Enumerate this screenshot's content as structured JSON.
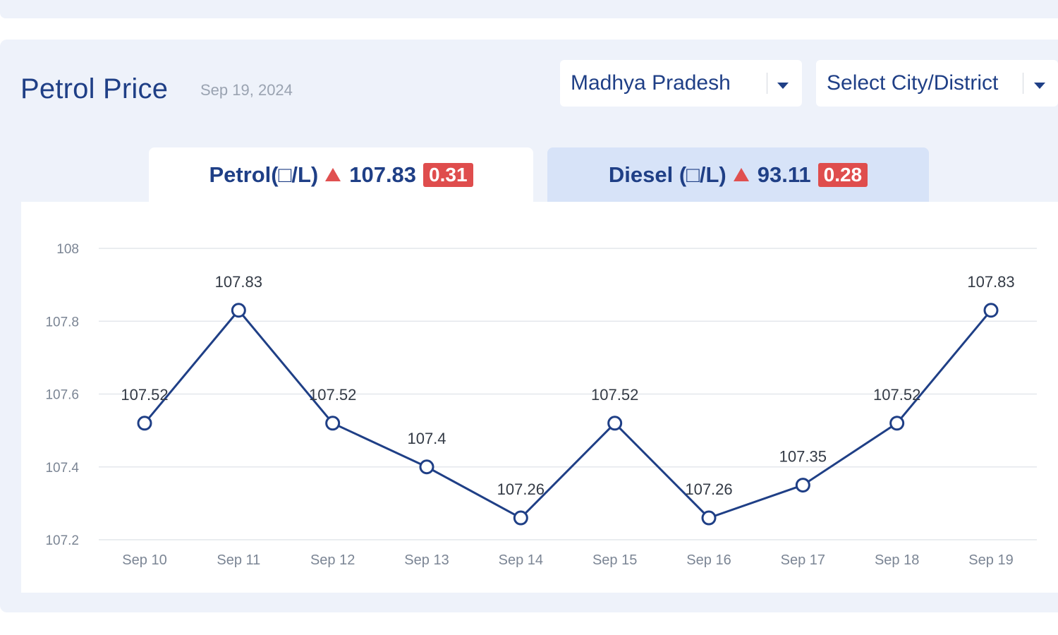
{
  "header": {
    "title": "Petrol Price",
    "date": "Sep 19, 2024",
    "state_select": {
      "value": "Madhya Pradesh"
    },
    "city_select": {
      "value": "Select City/District"
    }
  },
  "tabs": {
    "petrol": {
      "label": "Petrol(□/L)",
      "price": "107.83",
      "change": "0.31",
      "trend": "up",
      "active": true
    },
    "diesel": {
      "label": "Diesel (□/L)",
      "price": "93.11",
      "change": "0.28",
      "trend": "up",
      "active": false
    }
  },
  "colors": {
    "accent": "#1f3f86",
    "line": "#1f3f86",
    "up_badge": "#df4d4d",
    "panel_bg": "#eef2fa",
    "inactive_tab": "#d7e3f8"
  },
  "chart_data": {
    "type": "line",
    "categories": [
      "Sep 10",
      "Sep 11",
      "Sep 12",
      "Sep 13",
      "Sep 14",
      "Sep 15",
      "Sep 16",
      "Sep 17",
      "Sep 18",
      "Sep 19"
    ],
    "series": [
      {
        "values": [
          107.52,
          107.83,
          107.52,
          107.4,
          107.26,
          107.52,
          107.26,
          107.35,
          107.52,
          107.83
        ]
      }
    ],
    "data_labels": [
      "107.52",
      "107.83",
      "107.52",
      "107.4",
      "107.26",
      "107.52",
      "107.26",
      "107.35",
      "107.52",
      "107.83"
    ],
    "y_ticks": [
      "107.2",
      "107.4",
      "107.6",
      "107.8",
      "108"
    ],
    "ylim": [
      107.2,
      108
    ],
    "grid": true,
    "legend": "none"
  }
}
